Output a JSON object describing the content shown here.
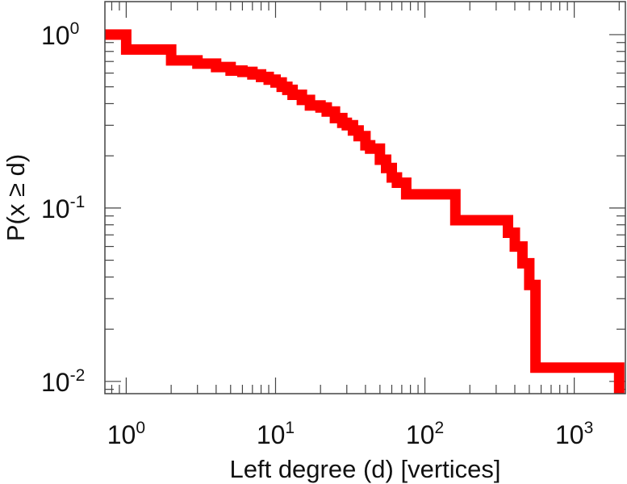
{
  "chart_data": {
    "type": "line",
    "subtype": "ccdf-step",
    "xlabel": "Left degree (d) [vertices]",
    "ylabel": "P(x ≥ d)",
    "x_scale": "log",
    "y_scale": "log",
    "xlim": [
      0.72,
      2200
    ],
    "ylim": [
      0.0085,
      1.55
    ],
    "grid": false,
    "legend": "none",
    "color": "#ff0000",
    "x_ticks": [
      {
        "base": "10",
        "exp": "0",
        "value": 1
      },
      {
        "base": "10",
        "exp": "1",
        "value": 10
      },
      {
        "base": "10",
        "exp": "2",
        "value": 100
      },
      {
        "base": "10",
        "exp": "3",
        "value": 1000
      }
    ],
    "y_ticks": [
      {
        "base": "10",
        "exp": "0",
        "value": 1
      },
      {
        "base": "10",
        "exp": "-1",
        "value": 0.1
      },
      {
        "base": "10",
        "exp": "-2",
        "value": 0.01
      }
    ],
    "series": [
      {
        "x": [
          0.72,
          1,
          2,
          3,
          4,
          5,
          6,
          7,
          8,
          9,
          10,
          11,
          12,
          13,
          15,
          17,
          20,
          22,
          25,
          28,
          30,
          33,
          36,
          40,
          43,
          50,
          55,
          60,
          65,
          75,
          100,
          160,
          360,
          400,
          450,
          500,
          550,
          2000
        ],
        "y": [
          1.0,
          0.82,
          0.71,
          0.68,
          0.65,
          0.62,
          0.61,
          0.59,
          0.57,
          0.55,
          0.53,
          0.5,
          0.48,
          0.45,
          0.42,
          0.39,
          0.38,
          0.36,
          0.33,
          0.31,
          0.3,
          0.28,
          0.26,
          0.23,
          0.22,
          0.19,
          0.17,
          0.15,
          0.14,
          0.12,
          0.12,
          0.085,
          0.072,
          0.06,
          0.048,
          0.036,
          0.012,
          0.0085
        ]
      }
    ]
  }
}
